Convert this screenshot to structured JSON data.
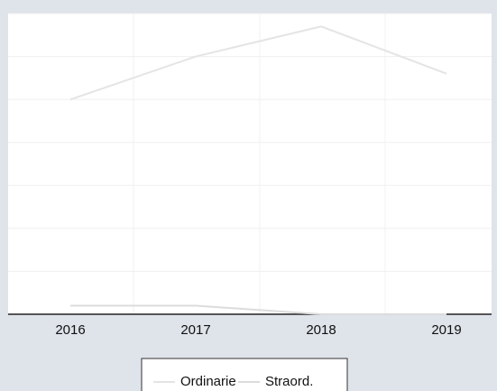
{
  "chart_data": {
    "type": "line",
    "categories": [
      "2016",
      "2017",
      "2018",
      "2019"
    ],
    "series": [
      {
        "name": "Ordinarie",
        "color": "#e4e4e4",
        "values": [
          5.0,
          6.0,
          6.7,
          5.6
        ]
      },
      {
        "name": "Straord.",
        "color": "#dcdcdc",
        "values": [
          0.2,
          0.2,
          0.0,
          0.0
        ]
      }
    ],
    "ylim": [
      0,
      7
    ],
    "yticks": [
      0,
      1,
      2,
      3,
      4,
      5,
      6,
      7
    ],
    "grid": true
  }
}
